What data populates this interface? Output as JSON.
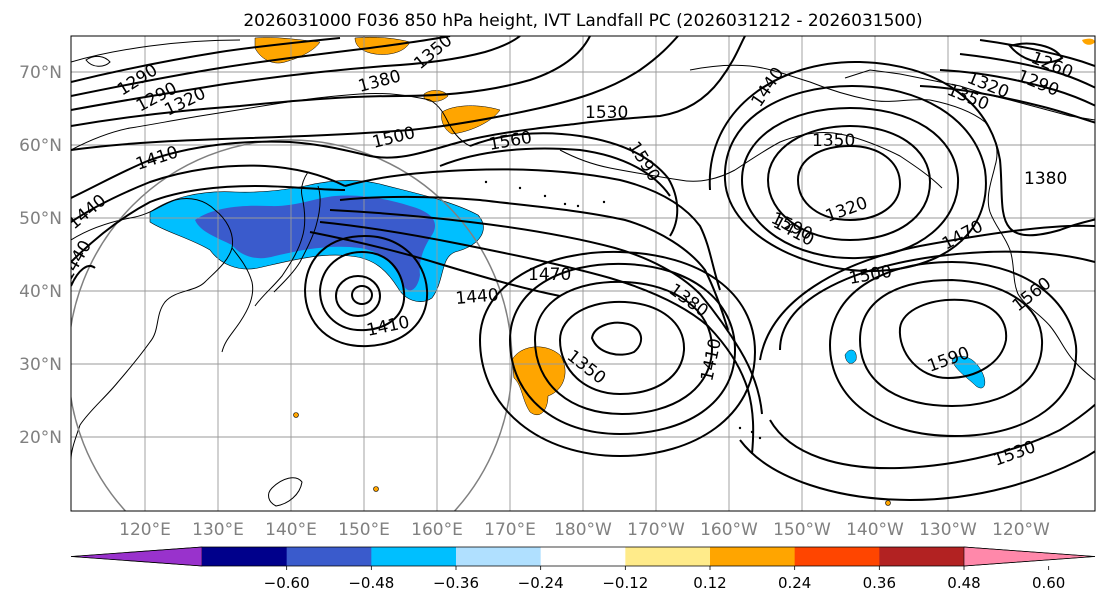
{
  "title": "2026031000 F036 850 hPa height, IVT Landfall PC (2026031212 - 2026031500)",
  "lat_labels": [
    "70°N",
    "60°N",
    "50°N",
    "40°N",
    "30°N",
    "20°N"
  ],
  "lon_labels": [
    "120°E",
    "130°E",
    "140°E",
    "150°E",
    "160°E",
    "170°E",
    "180°W",
    "170°W",
    "160°W",
    "150°W",
    "140°W",
    "130°W",
    "120°W"
  ],
  "contour_labels": [
    "1290",
    "1290",
    "1320",
    "1350",
    "1380",
    "1410",
    "1440",
    "1500",
    "1560",
    "1530",
    "1590",
    "1410",
    "1440",
    "1470",
    "1440",
    "1410",
    "1380",
    "1350",
    "1410",
    "1350",
    "1440",
    "1320",
    "1410",
    "1500",
    "1470",
    "1380",
    "1590",
    "1560",
    "1530",
    "1260",
    "1290",
    "1320",
    "1350"
  ],
  "colorbar": {
    "ticks": [
      "−0.60",
      "−0.48",
      "−0.36",
      "−0.24",
      "−0.12",
      "0.12",
      "0.24",
      "0.36",
      "0.48",
      "0.60"
    ],
    "colors": [
      "#9932cc",
      "#00008b",
      "#3a5bcc",
      "#00bfff",
      "#b0e0ff",
      "#ffffff",
      "#ffeb8a",
      "#ffa500",
      "#ff4500",
      "#b22222",
      "#ff88aa"
    ]
  },
  "colors": {
    "blue_shade": "#00bfff",
    "dark_blue_shade": "#3a5bcc",
    "orange_shade": "#ffa500",
    "contour": "#000000"
  }
}
